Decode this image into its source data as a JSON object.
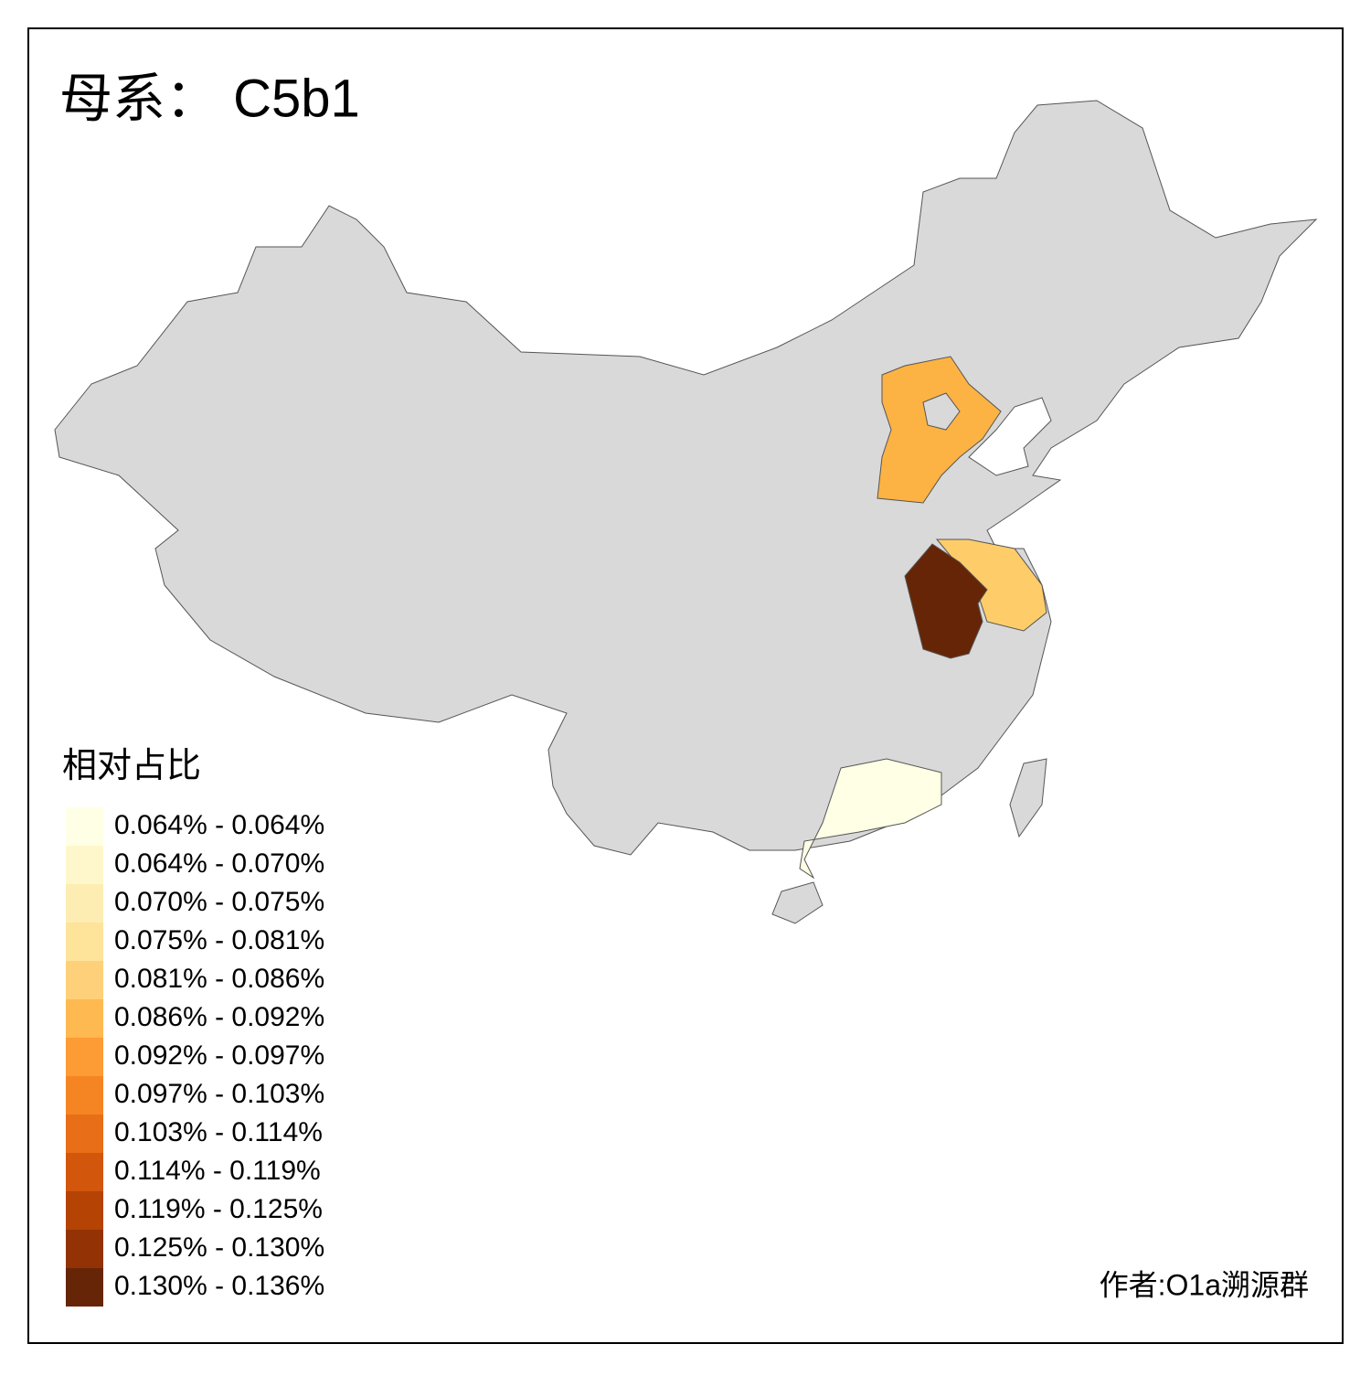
{
  "title": "母系： C5b1",
  "legend": {
    "title": "相对占比",
    "items": [
      {
        "label": "0.064% - 0.064%",
        "color": "#FFFFE5"
      },
      {
        "label": "0.064% - 0.070%",
        "color": "#FFF7CC"
      },
      {
        "label": "0.070% - 0.075%",
        "color": "#FEEDB2"
      },
      {
        "label": "0.075% - 0.081%",
        "color": "#FEE39A"
      },
      {
        "label": "0.081% - 0.086%",
        "color": "#FED07A"
      },
      {
        "label": "0.086% - 0.092%",
        "color": "#FEB950"
      },
      {
        "label": "0.092% - 0.097%",
        "color": "#FD9B34"
      },
      {
        "label": "0.097% - 0.103%",
        "color": "#F58523"
      },
      {
        "label": "0.103% - 0.114%",
        "color": "#E86E17"
      },
      {
        "label": "0.114% - 0.119%",
        "color": "#D2560B"
      },
      {
        "label": "0.119% - 0.125%",
        "color": "#B44304"
      },
      {
        "label": "0.125% - 0.130%",
        "color": "#933305"
      },
      {
        "label": "0.130% - 0.136%",
        "color": "#662506"
      }
    ]
  },
  "credit": "作者:O1a溯源群"
}
